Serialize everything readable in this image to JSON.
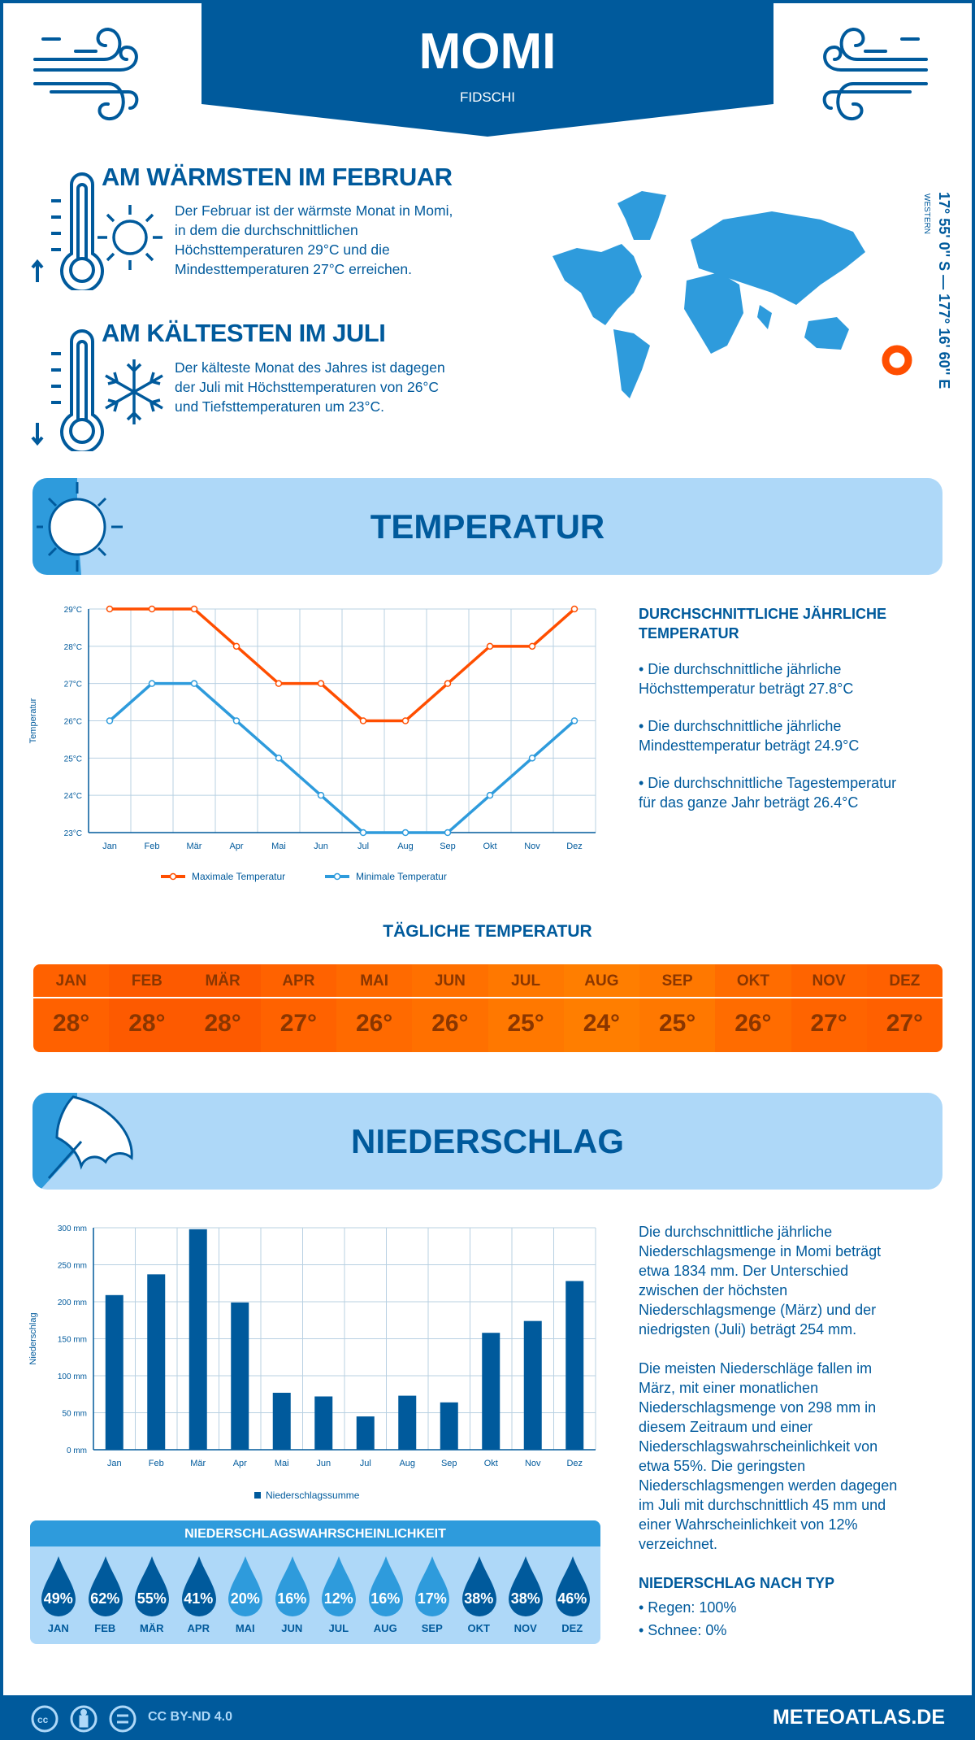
{
  "header": {
    "title": "MOMI",
    "subtitle": "FIDSCHI"
  },
  "warm": {
    "heading": "AM WÄRMSTEN IM FEBRUAR",
    "lines": [
      "Der Februar ist der wärmste Monat in Momi,",
      "in dem die durchschnittlichen",
      "Höchsttemperaturen 29°C und die",
      "Mindesttemperaturen 27°C erreichen."
    ]
  },
  "cold": {
    "heading": "AM KÄLTESTEN IM JULI",
    "lines": [
      "Der kälteste Monat des Jahres ist dagegen",
      "der Juli mit Höchsttemperaturen von 26°C",
      "und Tiefsttemperaturen um 23°C."
    ]
  },
  "coords": {
    "text": "17° 55' 0'' S — 177° 16' 60'' E",
    "region": "WESTERN"
  },
  "temp_section": {
    "title": "TEMPERATUR",
    "summary_heading": [
      "DURCHSCHNITTLICHE JÄHRLICHE",
      "TEMPERATUR"
    ],
    "bullets": [
      [
        "• Die durchschnittliche jährliche",
        "Höchsttemperatur beträgt 27.8°C"
      ],
      [
        "• Die durchschnittliche jährliche",
        "Mindesttemperatur beträgt 24.9°C"
      ],
      [
        "• Die durchschnittliche Tagestemperatur",
        "für das ganze Jahr beträgt 26.4°C"
      ]
    ]
  },
  "daily": {
    "heading": "TÄGLICHE TEMPERATUR",
    "months": [
      "JAN",
      "FEB",
      "MÄR",
      "APR",
      "MAI",
      "JUN",
      "JUL",
      "AUG",
      "SEP",
      "OKT",
      "NOV",
      "DEZ"
    ],
    "values": [
      "28°",
      "28°",
      "28°",
      "27°",
      "26°",
      "26°",
      "25°",
      "24°",
      "25°",
      "26°",
      "27°",
      "27°"
    ],
    "colors": [
      "#ff6100",
      "#fd5a00",
      "#fd5a00",
      "#ff6200",
      "#ff6a00",
      "#ff7000",
      "#ff7800",
      "#ff7e00",
      "#ff7800",
      "#ff6c00",
      "#ff6400",
      "#ff6000"
    ]
  },
  "precip_section": {
    "title": "NIEDERSCHLAG",
    "para1": [
      "Die durchschnittliche jährliche",
      "Niederschlagsmenge in Momi beträgt",
      "etwa 1834 mm. Der Unterschied",
      "zwischen der höchsten",
      "Niederschlagsmenge (März) und der",
      "niedrigsten (Juli) beträgt 254 mm."
    ],
    "para2": [
      "Die meisten Niederschläge fallen im",
      "März, mit einer monatlichen",
      "Niederschlagsmenge von 298 mm in",
      "diesem Zeitraum und einer",
      "Niederschlagswahrscheinlichkeit von",
      "etwa 55%. Die geringsten",
      "Niederschlagsmengen werden dagegen",
      "im Juli mit durchschnittlich 45 mm und",
      "einer Wahrscheinlichkeit von 12%",
      "verzeichnet."
    ],
    "type_heading": "NIEDERSCHLAG NACH TYP",
    "types": [
      "• Regen: 100%",
      "• Schnee: 0%"
    ]
  },
  "probability": {
    "heading": "NIEDERSCHLAGSWAHRSCHEINLICHKEIT",
    "months": [
      "JAN",
      "FEB",
      "MÄR",
      "APR",
      "MAI",
      "JUN",
      "JUL",
      "AUG",
      "SEP",
      "OKT",
      "NOV",
      "DEZ"
    ],
    "values": [
      "49%",
      "62%",
      "55%",
      "41%",
      "20%",
      "16%",
      "12%",
      "16%",
      "17%",
      "38%",
      "38%",
      "46%"
    ],
    "dark_color": "#005a9c",
    "light_color": "#2e9bdc"
  },
  "footer": {
    "license": "CC BY-ND 4.0",
    "site": "METEOATLAS.DE"
  },
  "chart_data": [
    {
      "type": "line",
      "title": "",
      "xlabel": "",
      "ylabel": "Temperatur",
      "categories": [
        "Jan",
        "Feb",
        "Mär",
        "Apr",
        "Mai",
        "Jun",
        "Jul",
        "Aug",
        "Sep",
        "Okt",
        "Nov",
        "Dez"
      ],
      "yticks": [
        "23°C",
        "24°C",
        "25°C",
        "26°C",
        "27°C",
        "28°C",
        "29°C"
      ],
      "ylim": [
        23,
        29
      ],
      "series": [
        {
          "name": "Maximale Temperatur",
          "color": "#ff4e00",
          "values": [
            29,
            29,
            29,
            28,
            27,
            27,
            26,
            26,
            27,
            28,
            28,
            29
          ]
        },
        {
          "name": "Minimale Temperatur",
          "color": "#2e9bdc",
          "values": [
            26,
            27,
            27,
            26,
            25,
            24,
            23,
            23,
            23,
            24,
            25,
            26
          ]
        }
      ],
      "legend": "bottom",
      "grid": true
    },
    {
      "type": "bar",
      "title": "",
      "xlabel": "",
      "ylabel": "Niederschlag",
      "categories": [
        "Jan",
        "Feb",
        "Mär",
        "Apr",
        "Mai",
        "Jun",
        "Jul",
        "Aug",
        "Sep",
        "Okt",
        "Nov",
        "Dez"
      ],
      "yticks": [
        "0 mm",
        "50 mm",
        "100 mm",
        "150 mm",
        "200 mm",
        "250 mm",
        "300 mm"
      ],
      "ylim": [
        0,
        300
      ],
      "series": [
        {
          "name": "Niederschlagssumme",
          "color": "#005a9c",
          "values": [
            209,
            237,
            298,
            199,
            77,
            72,
            45,
            73,
            64,
            158,
            174,
            228
          ]
        }
      ],
      "legend": "bottom",
      "grid": true
    }
  ]
}
